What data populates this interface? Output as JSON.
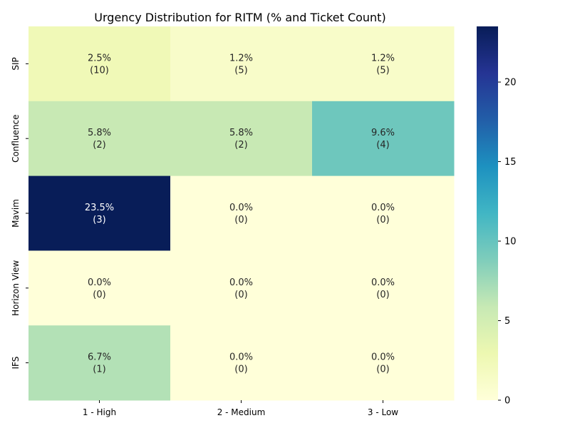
{
  "chart_data": {
    "type": "heatmap",
    "title": "Urgency Distribution for RITM (% and Ticket Count)",
    "xlabel": "",
    "ylabel": "",
    "x_categories": [
      "1 - High",
      "2 - Medium",
      "3 - Low"
    ],
    "y_categories": [
      "SIP",
      "Confluence",
      "Mavim",
      "Horizon View",
      "IFS"
    ],
    "values": [
      [
        2.5,
        1.2,
        1.2
      ],
      [
        5.8,
        5.8,
        9.6
      ],
      [
        23.5,
        0.0,
        0.0
      ],
      [
        0.0,
        0.0,
        0.0
      ],
      [
        6.7,
        0.0,
        0.0
      ]
    ],
    "counts": [
      [
        10,
        5,
        5
      ],
      [
        2,
        2,
        4
      ],
      [
        3,
        0,
        0
      ],
      [
        0,
        0,
        0
      ],
      [
        1,
        0,
        0
      ]
    ],
    "cell_labels": [
      [
        "2.5%",
        "1.2%",
        "1.2%"
      ],
      [
        "5.8%",
        "5.8%",
        "9.6%"
      ],
      [
        "23.5%",
        "0.0%",
        "0.0%"
      ],
      [
        "0.0%",
        "0.0%",
        "0.0%"
      ],
      [
        "6.7%",
        "0.0%",
        "0.0%"
      ]
    ],
    "count_labels": [
      [
        "(10)",
        "(5)",
        "(5)"
      ],
      [
        "(2)",
        "(2)",
        "(4)"
      ],
      [
        "(3)",
        "(0)",
        "(0)"
      ],
      [
        "(0)",
        "(0)",
        "(0)"
      ],
      [
        "(1)",
        "(0)",
        "(0)"
      ]
    ],
    "colormap": "YlGnBu",
    "colorbar": {
      "min": 0,
      "max": 23.5,
      "ticks": [
        0,
        5,
        10,
        15,
        20
      ]
    }
  }
}
